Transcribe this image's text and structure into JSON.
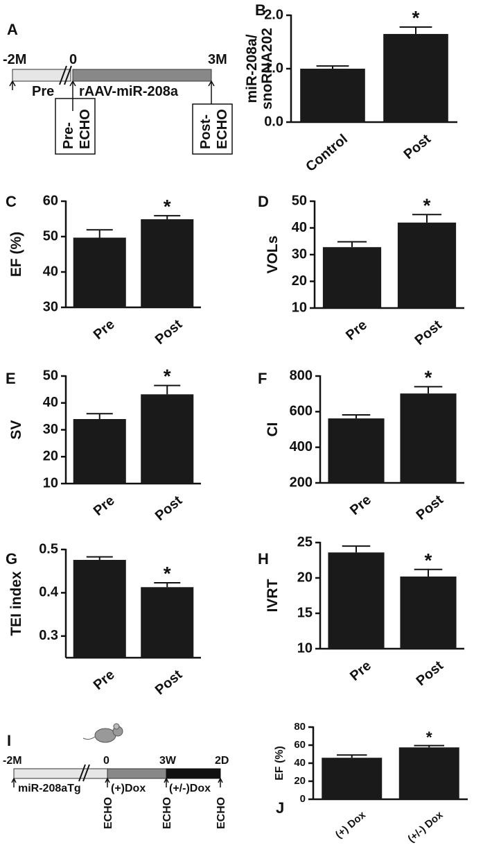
{
  "chart_data": [
    {
      "type": "bar",
      "panel": "B",
      "ylabel": [
        "miR-208a/",
        "snoRNA202"
      ],
      "categories": [
        "Control",
        "Post"
      ],
      "values": [
        1.0,
        1.65
      ],
      "errors": [
        0.05,
        0.13
      ],
      "significance": [
        null,
        "*"
      ],
      "color": "#1a1a1a",
      "ylim": [
        0,
        2
      ],
      "yticks": [
        {
          "value": 0,
          "label": "0.0"
        },
        {
          "value": 1,
          "label": "1.0"
        },
        {
          "value": 2,
          "label": "2.0"
        }
      ]
    },
    {
      "type": "bar",
      "panel": "C",
      "ylabel": [
        "EF (%)"
      ],
      "categories": [
        "Pre",
        "Post"
      ],
      "values": [
        49.7,
        54.9
      ],
      "errors": [
        2.2,
        1.0
      ],
      "significance": [
        null,
        "*"
      ],
      "color": "#1a1a1a",
      "ylim": [
        30,
        60
      ],
      "yticks": [
        30,
        40,
        50,
        60
      ]
    },
    {
      "type": "bar",
      "panel": "D",
      "ylabel": [
        "VOLs"
      ],
      "categories": [
        "Pre",
        "Post"
      ],
      "values": [
        32.8,
        42
      ],
      "errors": [
        2,
        3
      ],
      "significance": [
        null,
        "*"
      ],
      "color": "#1a1a1a",
      "ylim": [
        10,
        50
      ],
      "yticks": [
        10,
        20,
        30,
        40,
        50
      ]
    },
    {
      "type": "bar",
      "panel": "E",
      "ylabel": [
        "SV"
      ],
      "categories": [
        "Pre",
        "Post"
      ],
      "values": [
        34,
        43.2
      ],
      "errors": [
        2,
        3.3
      ],
      "significance": [
        null,
        "*"
      ],
      "color": "#1a1a1a",
      "ylim": [
        10,
        50
      ],
      "yticks": [
        10,
        20,
        30,
        40,
        50
      ]
    },
    {
      "type": "bar",
      "panel": "F",
      "ylabel": [
        "CI"
      ],
      "categories": [
        "Pre",
        "Post"
      ],
      "values": [
        562,
        702
      ],
      "errors": [
        20,
        38
      ],
      "significance": [
        null,
        "*"
      ],
      "color": "#1a1a1a",
      "ylim": [
        200,
        800
      ],
      "yticks": [
        200,
        400,
        600,
        800
      ]
    },
    {
      "type": "bar",
      "panel": "G",
      "ylabel": [
        "TEI index"
      ],
      "categories": [
        "Pre",
        "Post"
      ],
      "values": [
        0.476,
        0.413
      ],
      "errors": [
        0.007,
        0.01
      ],
      "significance": [
        null,
        "*"
      ],
      "color": "#1a1a1a",
      "ylim": [
        0.25,
        0.5
      ],
      "yticks": [
        0.3,
        0.4,
        0.5
      ]
    },
    {
      "type": "bar",
      "panel": "H",
      "ylabel": [
        "IVRT"
      ],
      "categories": [
        "Pre",
        "Post"
      ],
      "values": [
        23.6,
        20.2
      ],
      "errors": [
        0.9,
        1.0
      ],
      "significance": [
        null,
        "*"
      ],
      "color": "#1a1a1a",
      "ylim": [
        10,
        25
      ],
      "yticks": [
        10,
        15,
        20,
        25
      ]
    },
    {
      "type": "bar",
      "panel": "J",
      "ylabel": [
        "EF (%)"
      ],
      "categories": [
        "(+) Dox",
        "(+/-) Dox"
      ],
      "values": [
        46,
        57.5
      ],
      "errors": [
        3,
        2
      ],
      "significance": [
        null,
        "*"
      ],
      "color": "#1a1a1a",
      "ylim": [
        0,
        80
      ],
      "yticks": [
        0,
        20,
        40,
        60,
        80
      ]
    }
  ],
  "diagram_a": {
    "panel": "A",
    "time_labels": [
      "-2M",
      "0",
      "3M"
    ],
    "phase_labels": [
      "Pre",
      "rAAV-miR-208a"
    ],
    "boxes": [
      [
        "Pre-",
        "ECHO"
      ],
      [
        "Post-",
        "ECHO"
      ]
    ]
  },
  "diagram_i": {
    "panel": "I",
    "time_labels": [
      "-2M",
      "0",
      "3W",
      "2D"
    ],
    "phase_labels": [
      "miR-208aTg",
      "(+)Dox",
      "(+/-)Dox"
    ],
    "echo_labels": [
      "ECHO",
      "ECHO",
      "ECHO"
    ]
  }
}
